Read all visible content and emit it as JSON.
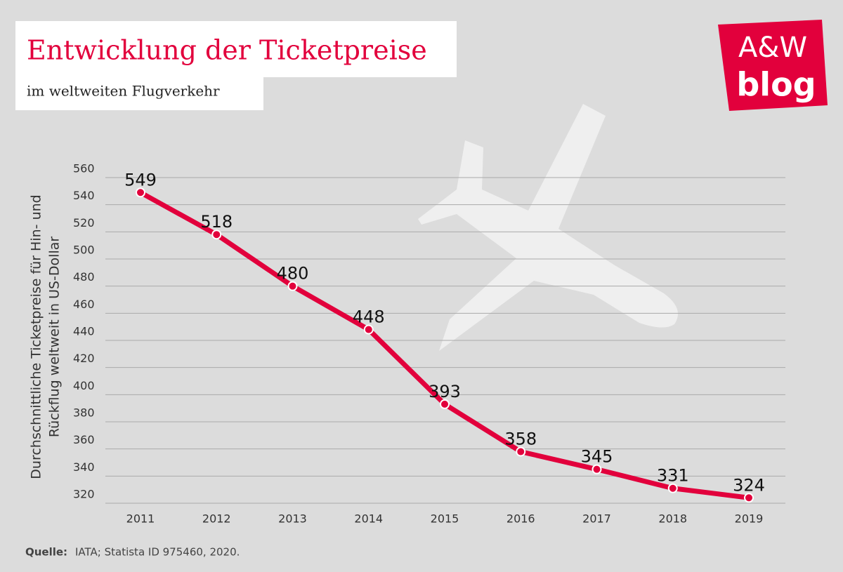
{
  "chart_data": {
    "type": "line",
    "title": "Entwicklung der Ticketpreise",
    "subtitle": "im weltweiten Flugverkehr",
    "y_label": [
      "Durchschnittliche Ticketpreise für Hin- und",
      "Rückflug weltweit in US-Dollar"
    ],
    "categories": [
      "2011",
      "2012",
      "2013",
      "2014",
      "2015",
      "2016",
      "2017",
      "2018",
      "2019"
    ],
    "series": [
      {
        "name": "Ticketpreise",
        "color": "#e2003c",
        "values": [
          549,
          518,
          480,
          448,
          393,
          358,
          345,
          331,
          324
        ]
      }
    ],
    "ylim": [
      320,
      560
    ],
    "yticks": [
      320,
      340,
      360,
      380,
      400,
      420,
      440,
      460,
      480,
      500,
      520,
      540,
      560
    ],
    "grid": true,
    "source_label": "Quelle:",
    "source": "IATA; Statista ID 975460, 2020.",
    "logo": [
      "A&W",
      "blog"
    ]
  }
}
